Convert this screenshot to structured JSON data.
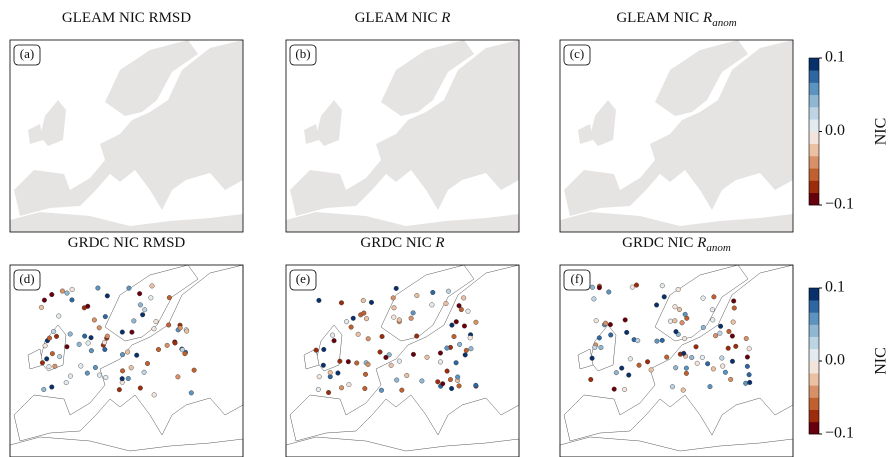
{
  "panels": [
    {
      "title": [
        "GLEAM NIC RMSD"
      ],
      "label": "(a)"
    },
    {
      "title": [
        "GLEAM NIC ",
        "R"
      ],
      "label": "(b)"
    },
    {
      "title": [
        "GLEAM NIC ",
        "R",
        "anom"
      ],
      "label": "(c)"
    },
    {
      "title": [
        "GRDC NIC RMSD"
      ],
      "label": "(d)"
    },
    {
      "title": [
        "GRDC NIC ",
        "R"
      ],
      "label": "(e)"
    },
    {
      "title": [
        "GRDC NIC ",
        "R",
        "anom"
      ],
      "label": "(f)"
    }
  ],
  "colorbar": {
    "label": "NIC",
    "lim": [
      -0.1,
      0.1
    ],
    "ticks": [
      {
        "value": -0.1,
        "label": "−0.1"
      },
      {
        "value": 0,
        "label": "0.0"
      },
      0.1
    ],
    "colors": [
      "#67000d",
      "#9c2c0c",
      "#c0602e",
      "#d89068",
      "#ebc0a3",
      "#f3e4dc",
      "#e4ebf0",
      "#bcd4e4",
      "#8fb7d3",
      "#5c93bf",
      "#2d66a0",
      "#08306b"
    ]
  }
}
